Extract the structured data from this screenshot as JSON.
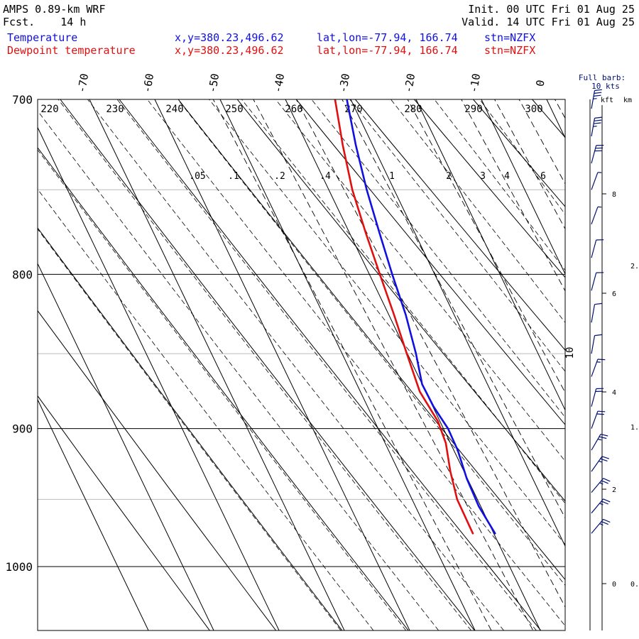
{
  "header": {
    "model": "AMPS 0.89-km WRF",
    "fcst_label": "Fcst.",
    "fcst_value": "14 h",
    "init": "Init. 00 UTC Fri 01 Aug 25",
    "valid": "Valid. 14 UTC Fri 01 Aug 25"
  },
  "legend": [
    {
      "name": "Temperature",
      "xy": "x,y=380.23,496.62",
      "latlon": "lat,lon=-77.94, 166.74",
      "stn": "stn=NZFX",
      "color": "#1010e0"
    },
    {
      "name": "Dewpoint temperature",
      "xy": "x,y=380.23,496.62",
      "latlon": "lat,lon=-77.94, 166.74",
      "stn": "stn=NZFX",
      "color": "#e01010"
    }
  ],
  "barb_legend": {
    "line1": "Full barb:",
    "line2": "10 kts"
  },
  "height_axis": {
    "kft_label": "kft",
    "km_label": "km"
  },
  "chart_data": {
    "type": "line",
    "chart_kind": "skew-T log-P",
    "pressure_axis": {
      "ticks": [
        700,
        800,
        900,
        1000
      ],
      "range": [
        700,
        1040
      ],
      "scale": "log"
    },
    "temperature_ticks": [
      -70,
      -60,
      -50,
      -40,
      -30,
      -20,
      -10,
      0
    ],
    "pressure_gridlines": [
      750,
      850,
      950
    ],
    "dry_adiabat_labels": [
      220,
      230,
      240,
      250,
      260,
      270,
      280,
      290,
      300
    ],
    "mixing_ratio_labels": [
      ".05",
      ".1",
      ".2",
      ".4",
      "1",
      "2",
      "3",
      "4",
      "6",
      "10"
    ],
    "height_ticks_kft": [
      "8",
      "6",
      "4",
      "2",
      "0"
    ],
    "height_ticks_km": [
      "2.",
      "1.",
      "0."
    ],
    "series": [
      {
        "name": "Temperature",
        "color": "#1010e0",
        "points": [
          {
            "p": 975,
            "t": -39.8
          },
          {
            "p": 955,
            "t": -40.3
          },
          {
            "p": 935,
            "t": -40.1
          },
          {
            "p": 915,
            "t": -39.4
          },
          {
            "p": 900,
            "t": -39.3
          },
          {
            "p": 885,
            "t": -39.9
          },
          {
            "p": 870,
            "t": -40.0
          },
          {
            "p": 850,
            "t": -38.7
          },
          {
            "p": 825,
            "t": -37.4
          },
          {
            "p": 800,
            "t": -36.5
          },
          {
            "p": 775,
            "t": -35.4
          },
          {
            "p": 750,
            "t": -34.2
          },
          {
            "p": 725,
            "t": -32.6
          },
          {
            "p": 700,
            "t": -30.6
          }
        ]
      },
      {
        "name": "Dewpoint temperature",
        "color": "#e01010",
        "points": [
          {
            "p": 975,
            "t": -43.2
          },
          {
            "p": 950,
            "t": -43.1
          },
          {
            "p": 930,
            "t": -42.1
          },
          {
            "p": 910,
            "t": -40.7
          },
          {
            "p": 895,
            "t": -40.3
          },
          {
            "p": 875,
            "t": -40.9
          },
          {
            "p": 850,
            "t": -40.1
          },
          {
            "p": 825,
            "t": -39.2
          },
          {
            "p": 800,
            "t": -38.4
          },
          {
            "p": 775,
            "t": -37.5
          },
          {
            "p": 750,
            "t": -36.4
          },
          {
            "p": 725,
            "t": -34.6
          },
          {
            "p": 700,
            "t": -32.4
          }
        ]
      }
    ],
    "wind_barbs": [
      {
        "p": 975,
        "dir": 40,
        "spd": 25
      },
      {
        "p": 960,
        "dir": 40,
        "spd": 25
      },
      {
        "p": 945,
        "dir": 40,
        "spd": 25
      },
      {
        "p": 930,
        "dir": 35,
        "spd": 25
      },
      {
        "p": 915,
        "dir": 30,
        "spd": 25
      },
      {
        "p": 900,
        "dir": 20,
        "spd": 20
      },
      {
        "p": 885,
        "dir": 15,
        "spd": 20
      },
      {
        "p": 865,
        "dir": 20,
        "spd": 15
      },
      {
        "p": 850,
        "dir": 10,
        "spd": 10
      },
      {
        "p": 830,
        "dir": 10,
        "spd": 10
      },
      {
        "p": 810,
        "dir": 15,
        "spd": 10
      },
      {
        "p": 790,
        "dir": 15,
        "spd": 10
      },
      {
        "p": 770,
        "dir": 20,
        "spd": 5
      },
      {
        "p": 750,
        "dir": 20,
        "spd": 5
      },
      {
        "p": 735,
        "dir": 15,
        "spd": 30
      },
      {
        "p": 720,
        "dir": 10,
        "spd": 35
      },
      {
        "p": 705,
        "dir": 10,
        "spd": 35
      }
    ]
  }
}
